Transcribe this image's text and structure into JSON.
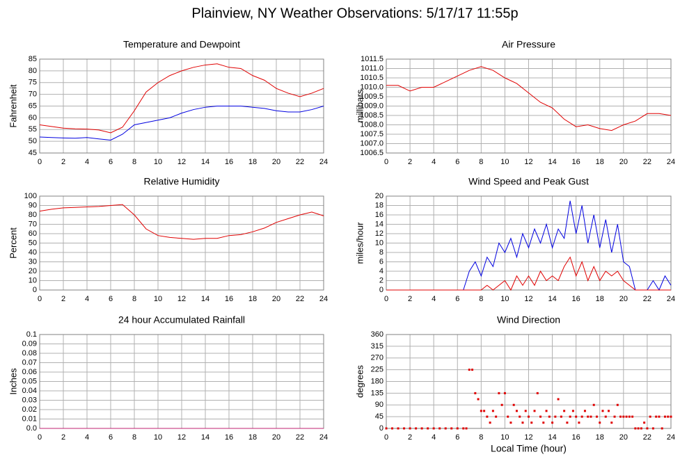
{
  "title": "Plainview, NY Weather Observations: 5/17/17 11:55p",
  "chart_data": [
    {
      "type": "line",
      "title": "Temperature and Dewpoint",
      "ylabel": "Fahrenheit",
      "x": [
        0,
        1,
        2,
        3,
        4,
        5,
        6,
        7,
        8,
        9,
        10,
        11,
        12,
        13,
        14,
        15,
        16,
        17,
        18,
        19,
        20,
        21,
        22,
        23,
        24
      ],
      "series": [
        {
          "color": "#e00000",
          "values": [
            57,
            56.3,
            55.6,
            55.3,
            55.2,
            54.8,
            53.6,
            56,
            63,
            71,
            75,
            78,
            80,
            81.5,
            82.5,
            83,
            81.5,
            81,
            78,
            76,
            72.5,
            70.5,
            69,
            70.5,
            72.5
          ]
        },
        {
          "color": "#0000e0",
          "values": [
            51.8,
            51.6,
            51.4,
            51.3,
            51.6,
            51,
            50.5,
            53,
            57,
            58,
            59,
            60,
            62,
            63.5,
            64.5,
            65,
            65,
            65,
            64.5,
            64,
            63,
            62.5,
            62.5,
            63.5,
            65
          ]
        }
      ],
      "xlim": [
        0,
        24
      ],
      "xticks": [
        0,
        2,
        4,
        6,
        8,
        10,
        12,
        14,
        16,
        18,
        20,
        22,
        24
      ],
      "ylim": [
        45,
        85
      ],
      "yticks": [
        45,
        50,
        55,
        60,
        65,
        70,
        75,
        80,
        85
      ],
      "grid": true
    },
    {
      "type": "line",
      "title": "Air Pressure",
      "ylabel": "millibars",
      "x": [
        0,
        1,
        2,
        3,
        4,
        5,
        6,
        7,
        8,
        9,
        10,
        11,
        12,
        13,
        14,
        15,
        16,
        17,
        18,
        19,
        20,
        21,
        22,
        23,
        24
      ],
      "series": [
        {
          "color": "#e00000",
          "values": [
            1010.1,
            1010.1,
            1009.8,
            1010.0,
            1010.0,
            1010.3,
            1010.6,
            1010.9,
            1011.1,
            1010.9,
            1010.5,
            1010.2,
            1009.7,
            1009.2,
            1008.9,
            1008.3,
            1007.9,
            1008.0,
            1007.8,
            1007.7,
            1008.0,
            1008.2,
            1008.6,
            1008.6,
            1008.5
          ]
        }
      ],
      "xlim": [
        0,
        24
      ],
      "xticks": [
        0,
        2,
        4,
        6,
        8,
        10,
        12,
        14,
        16,
        18,
        20,
        22,
        24
      ],
      "ylim": [
        1006.5,
        1011.5
      ],
      "yticks": [
        1006.5,
        {
          "value": 1007,
          "label": "1007.0"
        },
        1007.5,
        {
          "value": 1008,
          "label": "1008.0"
        },
        1008.5,
        {
          "value": 1009,
          "label": "1009.0"
        },
        1009.5,
        {
          "value": 1010,
          "label": "1010.0"
        },
        1010.5,
        {
          "value": 1011,
          "label": "1011.0"
        },
        1011.5
      ],
      "grid": true
    },
    {
      "type": "line",
      "title": "Relative Humidity",
      "ylabel": "Percent",
      "x": [
        0,
        1,
        2,
        3,
        4,
        5,
        6,
        7,
        8,
        9,
        10,
        11,
        12,
        13,
        14,
        15,
        16,
        17,
        18,
        19,
        20,
        21,
        22,
        23,
        24
      ],
      "series": [
        {
          "color": "#e00000",
          "values": [
            84,
            86,
            87.5,
            88,
            88.5,
            89,
            90,
            91,
            80,
            65,
            58,
            56,
            55,
            54,
            55,
            55,
            58,
            59,
            62,
            66,
            72,
            76,
            80,
            83,
            79
          ]
        }
      ],
      "xlim": [
        0,
        24
      ],
      "xticks": [
        0,
        2,
        4,
        6,
        8,
        10,
        12,
        14,
        16,
        18,
        20,
        22,
        24
      ],
      "ylim": [
        0,
        100
      ],
      "yticks": [
        0,
        10,
        20,
        30,
        40,
        50,
        60,
        70,
        80,
        90,
        100
      ],
      "grid": true
    },
    {
      "type": "line",
      "title": "Wind Speed and Peak Gust",
      "ylabel": "miles/hour",
      "x": [
        0,
        0.5,
        1,
        1.5,
        2,
        2.5,
        3,
        3.5,
        4,
        4.5,
        5,
        5.5,
        6,
        6.5,
        7,
        7.5,
        8,
        8.5,
        9,
        9.5,
        10,
        10.5,
        11,
        11.5,
        12,
        12.5,
        13,
        13.5,
        14,
        14.5,
        15,
        15.5,
        16,
        16.5,
        17,
        17.5,
        18,
        18.5,
        19,
        19.5,
        20,
        20.5,
        21,
        21.5,
        22,
        22.5,
        23,
        23.5,
        24
      ],
      "series": [
        {
          "color": "#0000e0",
          "values": [
            0,
            0,
            0,
            0,
            0,
            0,
            0,
            0,
            0,
            0,
            0,
            0,
            0,
            0,
            4,
            6,
            3,
            7,
            5,
            10,
            8,
            11,
            7,
            12,
            9,
            13,
            10,
            14,
            9,
            13,
            11,
            19,
            12,
            18,
            10,
            16,
            9,
            15,
            8,
            14,
            6,
            5,
            0,
            0,
            0,
            2,
            0,
            3,
            1
          ]
        },
        {
          "color": "#e00000",
          "values": [
            0,
            0,
            0,
            0,
            0,
            0,
            0,
            0,
            0,
            0,
            0,
            0,
            0,
            0,
            0,
            0,
            0,
            1,
            0,
            1,
            2,
            0,
            3,
            1,
            3,
            1,
            4,
            2,
            3,
            2,
            5,
            7,
            3,
            6,
            2,
            5,
            2,
            4,
            3,
            4,
            2,
            1,
            0,
            0,
            0,
            0,
            0,
            0,
            0
          ]
        }
      ],
      "xlim": [
        0,
        24
      ],
      "xticks": [
        0,
        2,
        4,
        6,
        8,
        10,
        12,
        14,
        16,
        18,
        20,
        22,
        24
      ],
      "ylim": [
        0,
        20
      ],
      "yticks": [
        0,
        2,
        4,
        6,
        8,
        10,
        12,
        14,
        16,
        18,
        20
      ],
      "grid": true
    },
    {
      "type": "line",
      "title": "24 hour Accumulated Rainfall",
      "ylabel": "Inches",
      "x": [
        0,
        1,
        2,
        3,
        4,
        5,
        6,
        7,
        8,
        9,
        10,
        11,
        12,
        13,
        14,
        15,
        16,
        17,
        18,
        19,
        20,
        21,
        22,
        23,
        24
      ],
      "series": [
        {
          "color": "#c02070",
          "values": [
            0,
            0,
            0,
            0,
            0,
            0,
            0,
            0,
            0,
            0,
            0,
            0,
            0,
            0,
            0,
            0,
            0,
            0,
            0,
            0,
            0,
            0,
            0,
            0,
            0
          ]
        }
      ],
      "xlim": [
        0,
        24
      ],
      "xticks": [
        0,
        2,
        4,
        6,
        8,
        10,
        12,
        14,
        16,
        18,
        20,
        22,
        24
      ],
      "ylim": [
        0,
        0.1
      ],
      "yticks": [
        {
          "value": 0,
          "label": "0.0"
        },
        0.01,
        0.02,
        0.03,
        0.04,
        0.05,
        0.06,
        0.07,
        0.08,
        0.09,
        0.1
      ],
      "grid": true
    },
    {
      "type": "scatter",
      "title": "Wind Direction",
      "ylabel": "degrees",
      "xlabel": "Local Time (hour)",
      "color": "#e00000",
      "x": [
        0,
        0.5,
        1,
        1.5,
        2,
        2.5,
        3,
        3.5,
        4,
        4.5,
        5,
        5.5,
        6,
        6.5,
        6.75,
        7,
        7.25,
        7.5,
        7.75,
        8,
        8.25,
        8.5,
        8.75,
        9,
        9.25,
        9.5,
        9.75,
        10,
        10.25,
        10.5,
        10.75,
        11,
        11.25,
        11.5,
        11.75,
        12,
        12.25,
        12.5,
        12.75,
        13,
        13.25,
        13.5,
        13.75,
        14,
        14.25,
        14.5,
        14.75,
        15,
        15.25,
        15.5,
        15.75,
        16,
        16.25,
        16.5,
        16.75,
        17,
        17.25,
        17.5,
        17.75,
        18,
        18.25,
        18.5,
        18.75,
        19,
        19.25,
        19.5,
        19.75,
        20,
        20.25,
        20.5,
        20.75,
        21,
        21.25,
        21.5,
        21.75,
        22,
        22.25,
        22.5,
        22.75,
        23,
        23.25,
        23.5,
        23.75,
        24
      ],
      "values": [
        0,
        0,
        0,
        0,
        0,
        0,
        0,
        0,
        0,
        0,
        0,
        0,
        0,
        0,
        0,
        225,
        225,
        135,
        112,
        67,
        67,
        45,
        22,
        67,
        45,
        135,
        90,
        135,
        45,
        22,
        90,
        67,
        45,
        22,
        67,
        45,
        22,
        67,
        135,
        45,
        22,
        67,
        45,
        22,
        45,
        112,
        45,
        67,
        22,
        45,
        67,
        45,
        22,
        45,
        67,
        45,
        45,
        90,
        45,
        22,
        67,
        45,
        67,
        22,
        45,
        90,
        45,
        45,
        45,
        45,
        45,
        0,
        0,
        0,
        22,
        0,
        45,
        0,
        45,
        45,
        0,
        45,
        45,
        45
      ],
      "xlim": [
        0,
        24
      ],
      "xticks": [
        0,
        2,
        4,
        6,
        8,
        10,
        12,
        14,
        16,
        18,
        20,
        22,
        24
      ],
      "ylim": [
        0,
        360
      ],
      "yticks": [
        0,
        45,
        90,
        135,
        180,
        225,
        270,
        315,
        360
      ],
      "grid": true
    }
  ]
}
